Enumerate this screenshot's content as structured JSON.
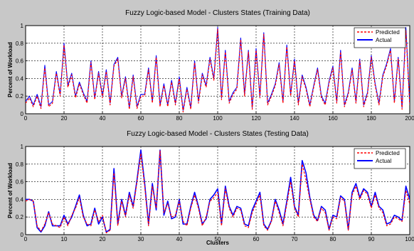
{
  "chart_data": [
    {
      "type": "line",
      "title": "Fuzzy Logic-based Model - Clusters States (Training Data)",
      "xlabel": "",
      "ylabel": "Percent of Workload",
      "xlim": [
        0,
        200
      ],
      "ylim": [
        0,
        1
      ],
      "xticks": [
        "0",
        "20",
        "40",
        "60",
        "80",
        "100",
        "120",
        "140",
        "160",
        "180",
        "200"
      ],
      "yticks": [
        "0",
        "0.2",
        "0.4",
        "0.6",
        "0.8",
        "1"
      ],
      "grid": true,
      "legend_position": "top-right",
      "x": [
        0,
        2,
        4,
        6,
        8,
        10,
        12,
        14,
        16,
        18,
        20,
        22,
        24,
        26,
        28,
        30,
        32,
        34,
        36,
        38,
        40,
        42,
        44,
        46,
        48,
        50,
        52,
        54,
        56,
        58,
        60,
        62,
        64,
        66,
        68,
        70,
        72,
        74,
        76,
        78,
        80,
        82,
        84,
        86,
        88,
        90,
        92,
        94,
        96,
        98,
        100,
        102,
        104,
        106,
        108,
        110,
        112,
        114,
        116,
        118,
        120,
        122,
        124,
        126,
        128,
        130,
        132,
        134,
        136,
        138,
        140,
        142,
        144,
        146,
        148,
        150,
        152,
        154,
        156,
        158,
        160,
        162,
        164,
        166,
        168,
        170,
        172,
        174,
        176,
        178,
        180,
        182,
        184,
        186,
        188,
        190,
        192,
        194,
        196,
        198,
        200
      ],
      "series": [
        {
          "name": "Predicted",
          "color": "#ff0000",
          "style": "dashed",
          "values": [
            0.12,
            0.18,
            0.08,
            0.2,
            0.06,
            0.52,
            0.08,
            0.12,
            0.46,
            0.2,
            0.78,
            0.3,
            0.44,
            0.18,
            0.34,
            0.22,
            0.12,
            0.58,
            0.16,
            0.46,
            0.18,
            0.48,
            0.1,
            0.54,
            0.62,
            0.18,
            0.4,
            0.05,
            0.42,
            0.06,
            0.2,
            0.2,
            0.5,
            0.12,
            0.64,
            0.08,
            0.32,
            0.08,
            0.36,
            0.1,
            0.4,
            0.02,
            0.28,
            0.05,
            0.58,
            0.12,
            0.44,
            0.3,
            0.62,
            0.38,
            0.96,
            0.16,
            0.7,
            0.12,
            0.22,
            0.28,
            0.84,
            0.2,
            0.7,
            0.05,
            0.72,
            0.18,
            0.9,
            0.1,
            0.2,
            0.32,
            0.56,
            0.12,
            0.76,
            0.2,
            0.6,
            0.1,
            0.42,
            0.28,
            0.08,
            0.3,
            0.5,
            0.18,
            0.1,
            0.35,
            0.52,
            0.12,
            0.7,
            0.08,
            0.22,
            0.5,
            0.12,
            0.6,
            0.08,
            0.22,
            0.64,
            0.32,
            0.1,
            0.42,
            0.55,
            0.72,
            0.12,
            0.62,
            0.05,
            0.94,
            0.1
          ]
        },
        {
          "name": "Actual",
          "color": "#0000ff",
          "style": "solid",
          "values": [
            0.14,
            0.2,
            0.1,
            0.22,
            0.08,
            0.55,
            0.1,
            0.14,
            0.48,
            0.22,
            0.8,
            0.32,
            0.46,
            0.2,
            0.36,
            0.24,
            0.14,
            0.6,
            0.18,
            0.48,
            0.2,
            0.5,
            0.12,
            0.56,
            0.64,
            0.2,
            0.42,
            0.07,
            0.44,
            0.08,
            0.22,
            0.22,
            0.52,
            0.14,
            0.66,
            0.1,
            0.34,
            0.1,
            0.38,
            0.12,
            0.42,
            0.04,
            0.3,
            0.07,
            0.6,
            0.14,
            0.46,
            0.32,
            0.64,
            0.4,
            0.98,
            0.18,
            0.72,
            0.14,
            0.24,
            0.3,
            0.86,
            0.22,
            0.72,
            0.07,
            0.74,
            0.2,
            0.92,
            0.12,
            0.22,
            0.34,
            0.58,
            0.14,
            0.78,
            0.22,
            0.62,
            0.12,
            0.44,
            0.3,
            0.1,
            0.32,
            0.52,
            0.2,
            0.12,
            0.37,
            0.54,
            0.14,
            0.72,
            0.1,
            0.24,
            0.52,
            0.14,
            0.62,
            0.1,
            0.24,
            0.66,
            0.34,
            0.12,
            0.44,
            0.57,
            0.74,
            0.14,
            0.64,
            0.07,
            0.98,
            0.12
          ]
        }
      ]
    },
    {
      "type": "line",
      "title": "Fuzzy Logic-based Model - Clusters States (Testing Data)",
      "xlabel": "Clusters",
      "ylabel": "Percent of Workload",
      "xlim": [
        0,
        100
      ],
      "ylim": [
        0,
        1
      ],
      "xticks": [
        "0",
        "10",
        "20",
        "30",
        "40",
        "50",
        "60",
        "70",
        "80",
        "90",
        "100"
      ],
      "yticks": [
        "0",
        "0.2",
        "0.4",
        "0.6",
        "0.8",
        "1"
      ],
      "grid": true,
      "legend_position": "top-right",
      "x": [
        0,
        1,
        2,
        3,
        4,
        5,
        6,
        7,
        8,
        9,
        10,
        11,
        12,
        13,
        14,
        15,
        16,
        17,
        18,
        19,
        20,
        21,
        22,
        23,
        24,
        25,
        26,
        27,
        28,
        29,
        30,
        31,
        32,
        33,
        34,
        35,
        36,
        37,
        38,
        39,
        40,
        41,
        42,
        43,
        44,
        45,
        46,
        47,
        48,
        49,
        50,
        51,
        52,
        53,
        54,
        55,
        56,
        57,
        58,
        59,
        60,
        61,
        62,
        63,
        64,
        65,
        66,
        67,
        68,
        69,
        70,
        71,
        72,
        73,
        74,
        75,
        76,
        77,
        78,
        79,
        80,
        81,
        82,
        83,
        84,
        85,
        86,
        87,
        88,
        89,
        90,
        91,
        92,
        93,
        94,
        95,
        96,
        97,
        98,
        99,
        100
      ],
      "series": [
        {
          "name": "Predicted",
          "color": "#ff0000",
          "style": "dashed",
          "values": [
            0.38,
            0.4,
            0.38,
            0.1,
            0.04,
            0.12,
            0.25,
            0.12,
            0.1,
            0.08,
            0.2,
            0.1,
            0.22,
            0.3,
            0.42,
            0.2,
            0.12,
            0.1,
            0.28,
            0.15,
            0.22,
            0.02,
            0.05,
            0.7,
            0.1,
            0.38,
            0.2,
            0.45,
            0.3,
            0.6,
            0.92,
            0.55,
            0.1,
            0.55,
            0.3,
            0.95,
            0.25,
            0.35,
            0.2,
            0.22,
            0.38,
            0.15,
            0.1,
            0.3,
            0.45,
            0.3,
            0.1,
            0.2,
            0.38,
            0.42,
            0.48,
            0.1,
            0.52,
            0.3,
            0.2,
            0.3,
            0.28,
            0.1,
            0.08,
            0.25,
            0.35,
            0.45,
            0.1,
            0.05,
            0.15,
            0.38,
            0.25,
            0.1,
            0.35,
            0.6,
            0.3,
            0.2,
            0.8,
            0.62,
            0.4,
            0.2,
            0.15,
            0.3,
            0.25,
            0.05,
            0.2,
            0.18,
            0.42,
            0.38,
            0.05,
            0.45,
            0.55,
            0.4,
            0.5,
            0.46,
            0.3,
            0.45,
            0.3,
            0.25,
            0.1,
            0.12,
            0.2,
            0.18,
            0.15,
            0.5,
            0.35
          ]
        },
        {
          "name": "Actual",
          "color": "#0000ff",
          "style": "solid",
          "values": [
            0.4,
            0.4,
            0.38,
            0.08,
            0.03,
            0.1,
            0.26,
            0.1,
            0.1,
            0.1,
            0.22,
            0.12,
            0.2,
            0.32,
            0.45,
            0.22,
            0.1,
            0.12,
            0.3,
            0.12,
            0.2,
            0.03,
            0.06,
            0.75,
            0.12,
            0.4,
            0.22,
            0.48,
            0.32,
            0.62,
            0.96,
            0.58,
            0.12,
            0.58,
            0.28,
            0.96,
            0.22,
            0.38,
            0.18,
            0.2,
            0.4,
            0.12,
            0.12,
            0.32,
            0.48,
            0.32,
            0.12,
            0.18,
            0.4,
            0.45,
            0.52,
            0.12,
            0.55,
            0.32,
            0.22,
            0.32,
            0.3,
            0.12,
            0.1,
            0.28,
            0.38,
            0.48,
            0.12,
            0.06,
            0.16,
            0.4,
            0.28,
            0.12,
            0.38,
            0.65,
            0.32,
            0.22,
            0.84,
            0.7,
            0.42,
            0.22,
            0.16,
            0.32,
            0.28,
            0.06,
            0.22,
            0.2,
            0.44,
            0.4,
            0.06,
            0.48,
            0.58,
            0.42,
            0.52,
            0.48,
            0.32,
            0.48,
            0.32,
            0.28,
            0.12,
            0.14,
            0.22,
            0.2,
            0.16,
            0.55,
            0.4
          ]
        }
      ]
    }
  ]
}
